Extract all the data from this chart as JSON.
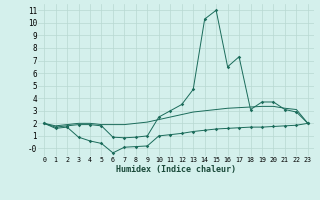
{
  "xlabel": "Humidex (Indice chaleur)",
  "x": [
    0,
    1,
    2,
    3,
    4,
    5,
    6,
    7,
    8,
    9,
    10,
    11,
    12,
    13,
    14,
    15,
    16,
    17,
    18,
    19,
    20,
    21,
    22,
    23
  ],
  "line1": [
    2.0,
    1.7,
    1.8,
    1.9,
    1.9,
    1.8,
    0.9,
    0.85,
    0.9,
    1.0,
    2.5,
    3.0,
    3.5,
    4.7,
    10.3,
    11.0,
    6.5,
    7.3,
    3.1,
    3.7,
    3.7,
    3.1,
    2.9,
    2.0
  ],
  "line2": [
    2.0,
    1.8,
    1.9,
    2.0,
    2.0,
    1.9,
    1.9,
    1.9,
    2.0,
    2.1,
    2.3,
    2.5,
    2.7,
    2.9,
    3.0,
    3.1,
    3.2,
    3.25,
    3.3,
    3.35,
    3.35,
    3.2,
    3.1,
    2.0
  ],
  "line3": [
    2.0,
    1.6,
    1.7,
    0.9,
    0.6,
    0.4,
    -0.35,
    0.1,
    0.15,
    0.2,
    1.0,
    1.1,
    1.2,
    1.35,
    1.45,
    1.55,
    1.6,
    1.65,
    1.7,
    1.7,
    1.75,
    1.8,
    1.85,
    2.0
  ],
  "bg_color": "#d4f0ec",
  "grid_color": "#b8d8d2",
  "line_color": "#1a6b5a",
  "ylim": [
    -0.6,
    11.5
  ],
  "xlim": [
    -0.5,
    23.5
  ],
  "yticks": [
    0,
    1,
    2,
    3,
    4,
    5,
    6,
    7,
    8,
    9,
    10,
    11
  ],
  "ytick_labels": [
    "-0",
    "1",
    "2",
    "3",
    "4",
    "5",
    "6",
    "7",
    "8",
    "9",
    "10",
    "11"
  ],
  "xtick_labels": [
    "0",
    "1",
    "2",
    "3",
    "4",
    "5",
    "6",
    "7",
    "8",
    "9",
    "10",
    "11",
    "12",
    "13",
    "14",
    "15",
    "16",
    "17",
    "18",
    "19",
    "20",
    "21",
    "22",
    "23"
  ]
}
